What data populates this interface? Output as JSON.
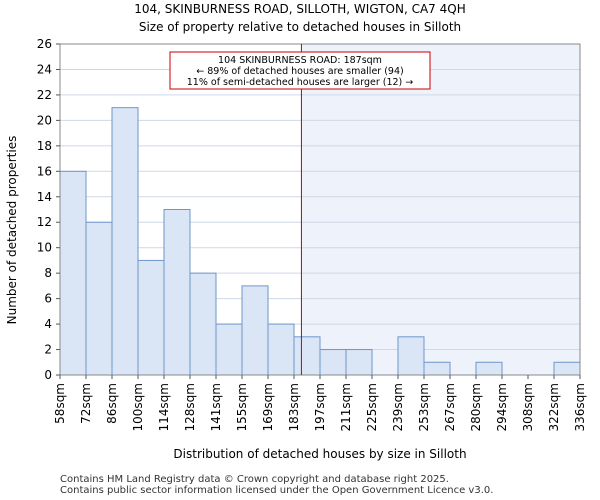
{
  "header": {
    "title_line1": "104, SKINBURNESS ROAD, SILLOTH, WIGTON, CA7 4QH",
    "title_line2": "Size of property relative to detached houses in Silloth"
  },
  "chart_data": {
    "type": "bar",
    "title": "104, SKINBURNESS ROAD, SILLOTH, WIGTON, CA7 4QH",
    "subtitle": "Size of property relative to detached houses in Silloth",
    "xlabel": "Distribution of detached houses by size in Silloth",
    "ylabel": "Number of detached properties",
    "bin_edges": [
      58,
      72,
      86,
      100,
      114,
      128,
      141,
      155,
      169,
      183,
      197,
      211,
      225,
      239,
      253,
      267,
      280,
      294,
      308,
      322,
      336
    ],
    "tick_labels": [
      "58sqm",
      "72sqm",
      "86sqm",
      "100sqm",
      "114sqm",
      "128sqm",
      "141sqm",
      "155sqm",
      "169sqm",
      "183sqm",
      "197sqm",
      "211sqm",
      "225sqm",
      "239sqm",
      "253sqm",
      "267sqm",
      "280sqm",
      "294sqm",
      "308sqm",
      "322sqm",
      "336sqm"
    ],
    "values": [
      16,
      12,
      21,
      9,
      13,
      8,
      4,
      7,
      4,
      3,
      2,
      2,
      0,
      3,
      1,
      0,
      1,
      0,
      0,
      1
    ],
    "ylim": [
      0,
      26
    ],
    "yticks": [
      0,
      2,
      4,
      6,
      8,
      10,
      12,
      14,
      16,
      18,
      20,
      22,
      24,
      26
    ],
    "marker": {
      "value_sqm": 187,
      "label": "104 SKINBURNESS ROAD: 187sqm",
      "line2": "← 89% of detached houses are smaller (94)",
      "line3": "11% of semi-detached houses are larger (12) →"
    },
    "colors": {
      "bar_fill": "#dae6f5",
      "bar_stroke": "#6d96cc",
      "marker_line": "#cc0000",
      "highlight": "#eef2fb"
    }
  },
  "footer": {
    "line1": "Contains HM Land Registry data © Crown copyright and database right 2025.",
    "line2": "Contains public sector information licensed under the Open Government Licence v3.0."
  }
}
